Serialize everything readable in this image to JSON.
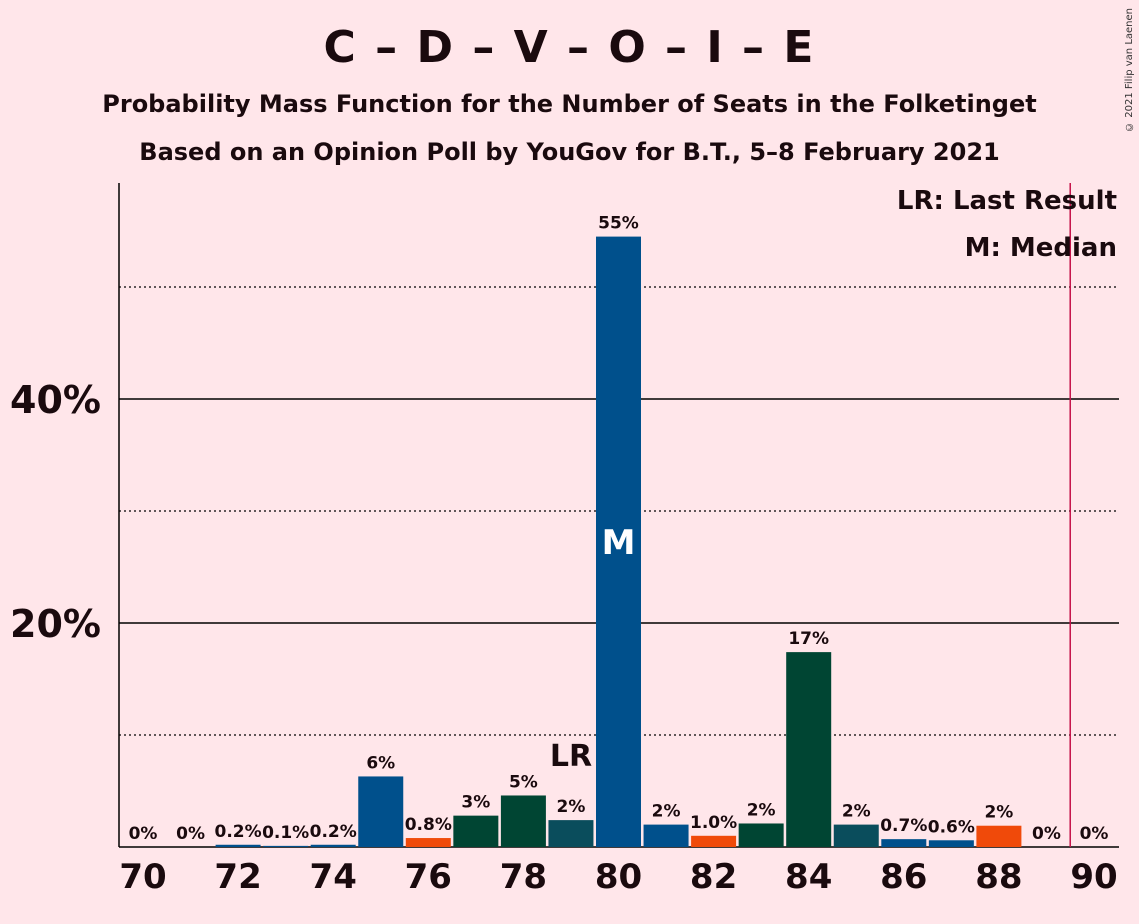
{
  "header": {
    "title": "C – D – V – O – I – E",
    "subtitle_1": "Probability Mass Function for the Number of Seats in the Folketinget",
    "subtitle_2": "Based on an Opinion Poll by YouGov for B.T., 5–8 February 2021",
    "copyright": "© 2021 Filip van Laenen"
  },
  "legend": {
    "lr": "LR: Last Result",
    "m": "M: Median"
  },
  "colors": {
    "background": "#FFE6EA",
    "blue": "#00508C",
    "dark_green": "#004533",
    "teal": "#0A4D5C",
    "orange": "#F04A0A",
    "majority_line": "#C41048"
  },
  "chart_data": {
    "type": "bar",
    "x": [
      70,
      71,
      72,
      73,
      74,
      75,
      76,
      77,
      78,
      79,
      80,
      81,
      82,
      83,
      84,
      85,
      86,
      87,
      88,
      89,
      90
    ],
    "values": [
      0,
      0,
      0.2,
      0.1,
      0.2,
      6.3,
      0.8,
      2.8,
      4.6,
      2.4,
      54.5,
      2.0,
      1.0,
      2.1,
      17.4,
      2.0,
      0.7,
      0.6,
      1.9,
      0,
      0
    ],
    "labels": [
      "0%",
      "0%",
      "0.2%",
      "0.1%",
      "0.2%",
      "6%",
      "0.8%",
      "3%",
      "5%",
      "2%",
      "55%",
      "2%",
      "1.0%",
      "2%",
      "17%",
      "2%",
      "0.7%",
      "0.6%",
      "2%",
      "0%",
      "0%"
    ],
    "bar_colors": [
      "blue",
      "blue",
      "blue",
      "blue",
      "blue",
      "blue",
      "orange",
      "dark_green",
      "dark_green",
      "teal",
      "blue",
      "blue",
      "orange",
      "dark_green",
      "dark_green",
      "teal",
      "blue",
      "blue",
      "orange",
      "blue",
      "blue"
    ],
    "x_ticks": [
      "70",
      "72",
      "74",
      "76",
      "78",
      "80",
      "82",
      "84",
      "86",
      "88",
      "90"
    ],
    "y_ticks": [
      "20%",
      "40%"
    ],
    "ylim": [
      0,
      59
    ],
    "grid": "solid lines at 20% and 40%, dotted lines at 10%, 30% and 50%",
    "last_result_seat": 79,
    "last_result_label": "LR",
    "median_seat": 80,
    "median_label": "M",
    "majority_line_x": 89.5
  }
}
